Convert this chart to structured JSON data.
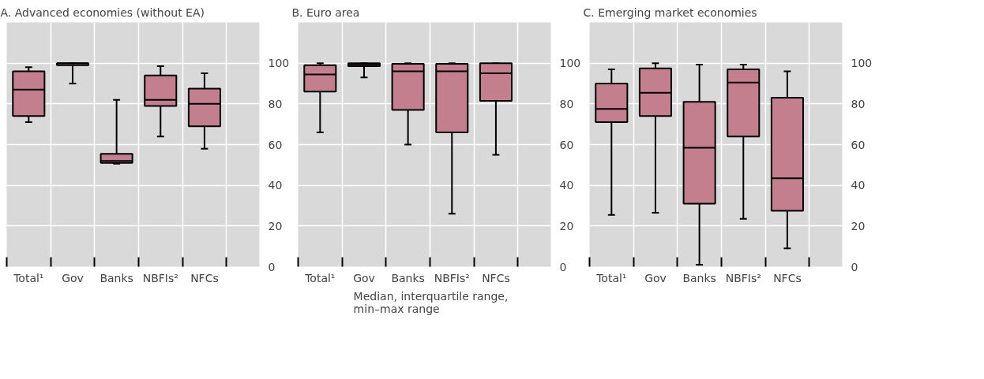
{
  "chart_data": [
    {
      "type": "box",
      "title": "A. Advanced economies (without EA)",
      "categories": [
        "Total¹",
        "Gov",
        "Banks",
        "NBFIs²",
        "NFCs"
      ],
      "ylim": [
        0,
        120
      ],
      "yticks": [
        0,
        20,
        40,
        60,
        80,
        100
      ],
      "grid": true,
      "series": [
        {
          "color": "#c47f8e",
          "boxes": [
            {
              "low": 71,
              "q1": 74,
              "median": 87,
              "q3": 96,
              "high": 98
            },
            {
              "low": 90,
              "q1": 99,
              "median": 100,
              "q3": 100,
              "high": 100
            },
            {
              "low": 50.6,
              "q1": 51,
              "median": 52,
              "q3": 55.5,
              "high": 82
            },
            {
              "low": 64,
              "q1": 79,
              "median": 82,
              "q3": 94,
              "high": 98.5
            },
            {
              "low": 58,
              "q1": 69,
              "median": 80,
              "q3": 87.5,
              "high": 95
            }
          ]
        }
      ]
    },
    {
      "type": "box",
      "title": "B. Euro area",
      "categories": [
        "Total¹",
        "Gov",
        "Banks",
        "NBFIs²",
        "NFCs"
      ],
      "ylim": [
        0,
        120
      ],
      "yticks": [
        0,
        20,
        40,
        60,
        80,
        100
      ],
      "grid": true,
      "legend": "bottom",
      "series": [
        {
          "name": "Median, interquartile range, min–max range",
          "color": "#c47f8e",
          "boxes": [
            {
              "low": 66,
              "q1": 86,
              "median": 94.5,
              "q3": 99,
              "high": 100
            },
            {
              "low": 93,
              "q1": 98.5,
              "median": 99.4,
              "q3": 100,
              "high": 100
            },
            {
              "low": 60,
              "q1": 77,
              "median": 96,
              "q3": 99.7,
              "high": 100
            },
            {
              "low": 26,
              "q1": 66,
              "median": 96,
              "q3": 99.7,
              "high": 100
            },
            {
              "low": 55,
              "q1": 81.5,
              "median": 95,
              "q3": 100,
              "high": 100
            }
          ]
        }
      ]
    },
    {
      "type": "box",
      "title": "C. Emerging market economies",
      "categories": [
        "Total¹",
        "Gov",
        "Banks",
        "NBFIs²",
        "NFCs"
      ],
      "ylim": [
        0,
        120
      ],
      "yticks": [
        0,
        20,
        40,
        60,
        80,
        100
      ],
      "grid": true,
      "series": [
        {
          "color": "#c47f8e",
          "boxes": [
            {
              "low": 25.5,
              "q1": 71,
              "median": 77.5,
              "q3": 90,
              "high": 97
            },
            {
              "low": 26.5,
              "q1": 74,
              "median": 85.5,
              "q3": 97.5,
              "high": 100
            },
            {
              "low": 1,
              "q1": 31,
              "median": 58.5,
              "q3": 81,
              "high": 99.3
            },
            {
              "low": 23.5,
              "q1": 64,
              "median": 90.5,
              "q3": 97,
              "high": 99.3
            },
            {
              "low": 9,
              "q1": 27.5,
              "median": 43.5,
              "q3": 83,
              "high": 96
            }
          ]
        }
      ]
    }
  ]
}
